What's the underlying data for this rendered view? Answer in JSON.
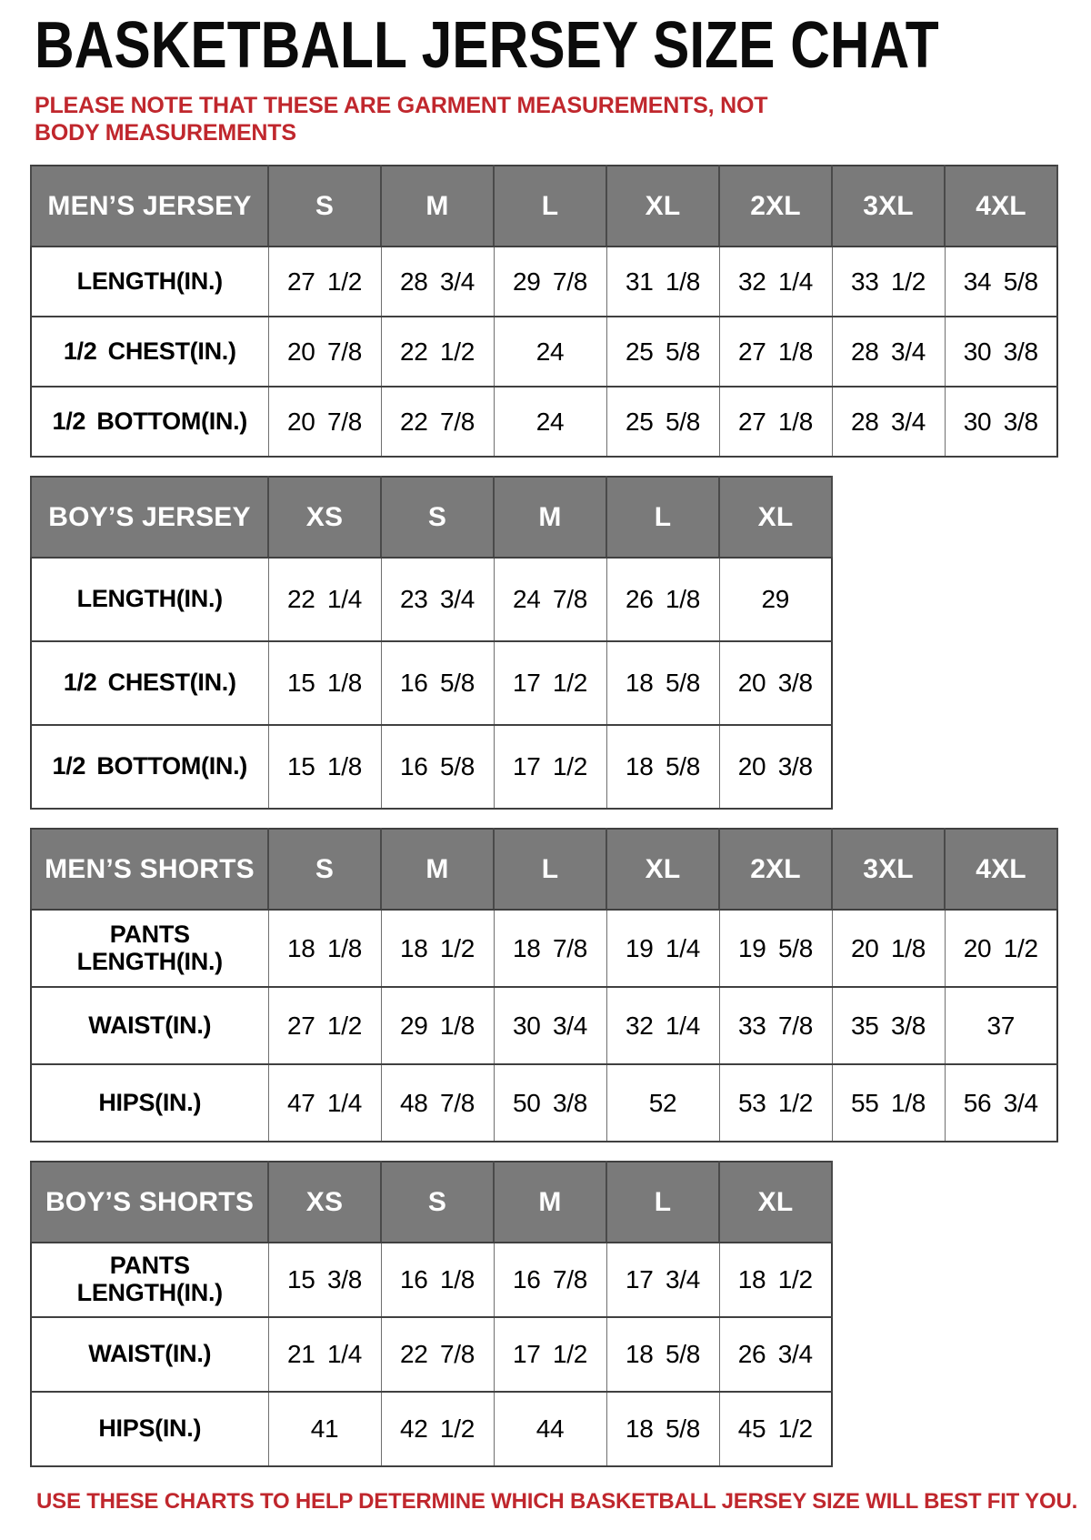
{
  "page": {
    "title": "BASKETBALL JERSEY SIZE CHAT",
    "note": "PLEASE NOTE THAT THESE ARE GARMENT MEASUREMENTS, NOT BODY MEASUREMENTS",
    "footer": "USE THESE CHARTS TO HELP DETERMINE WHICH BASKETBALL JERSEY SIZE WILL BEST FIT YOU."
  },
  "colors": {
    "header_bg": "#7a7a7a",
    "header_text": "#ffffff",
    "accent_red": "#c0272d",
    "border_dark": "#404040",
    "border_light": "#6f6f6f",
    "body_text": "#000000"
  },
  "tables": [
    {
      "id": "mens-jersey",
      "header": [
        "MEN’S JERSEY",
        "S",
        "M",
        "L",
        "XL",
        "2XL",
        "3XL",
        "4XL"
      ],
      "rows": [
        {
          "label": "LENGTH(IN.)",
          "values": [
            "27 1/2",
            "28 3/4",
            "29 7/8",
            "31 1/8",
            "32 1/4",
            "33 1/2",
            "34 5/8"
          ]
        },
        {
          "label": "1/2 CHEST(IN.)",
          "values": [
            "20 7/8",
            "22 1/2",
            "24",
            "25 5/8",
            "27 1/8",
            "28 3/4",
            "30 3/8"
          ]
        },
        {
          "label": "1/2 BOTTOM(IN.)",
          "values": [
            "20 7/8",
            "22 7/8",
            "24",
            "25 5/8",
            "27 1/8",
            "28 3/4",
            "30 3/8"
          ]
        }
      ]
    },
    {
      "id": "boys-jersey",
      "header": [
        "BOY’S JERSEY",
        "XS",
        "S",
        "M",
        "L",
        "XL"
      ],
      "rows": [
        {
          "label": "LENGTH(IN.)",
          "values": [
            "22 1/4",
            "23 3/4",
            "24 7/8",
            "26 1/8",
            "29"
          ]
        },
        {
          "label": "1/2 CHEST(IN.)",
          "values": [
            "15 1/8",
            "16 5/8",
            "17 1/2",
            "18 5/8",
            "20 3/8"
          ]
        },
        {
          "label": "1/2 BOTTOM(IN.)",
          "values": [
            "15 1/8",
            "16 5/8",
            "17 1/2",
            "18 5/8",
            "20 3/8"
          ]
        }
      ]
    },
    {
      "id": "mens-shorts",
      "header": [
        "MEN’S SHORTS",
        "S",
        "M",
        "L",
        "XL",
        "2XL",
        "3XL",
        "4XL"
      ],
      "rows": [
        {
          "label": "PANTS\nLENGTH(IN.)",
          "values": [
            "18 1/8",
            "18 1/2",
            "18 7/8",
            "19 1/4",
            "19 5/8",
            "20 1/8",
            "20 1/2"
          ]
        },
        {
          "label": "WAIST(IN.)",
          "values": [
            "27 1/2",
            "29 1/8",
            "30 3/4",
            "32 1/4",
            "33 7/8",
            "35 3/8",
            "37"
          ]
        },
        {
          "label": "HIPS(IN.)",
          "values": [
            "47 1/4",
            "48 7/8",
            "50 3/8",
            "52",
            "53 1/2",
            "55 1/8",
            "56 3/4"
          ]
        }
      ]
    },
    {
      "id": "boys-shorts",
      "header": [
        "BOY’S SHORTS",
        "XS",
        "S",
        "M",
        "L",
        "XL"
      ],
      "rows": [
        {
          "label": "PANTS\nLENGTH(IN.)",
          "values": [
            "15 3/8",
            "16 1/8",
            "16 7/8",
            "17 3/4",
            "18 1/2"
          ]
        },
        {
          "label": "WAIST(IN.)",
          "values": [
            "21 1/4",
            "22 7/8",
            "17 1/2",
            "18 5/8",
            "26 3/4"
          ]
        },
        {
          "label": "HIPS(IN.)",
          "values": [
            "41",
            "42 1/2",
            "44",
            "18 5/8",
            "45 1/2"
          ]
        }
      ]
    }
  ]
}
